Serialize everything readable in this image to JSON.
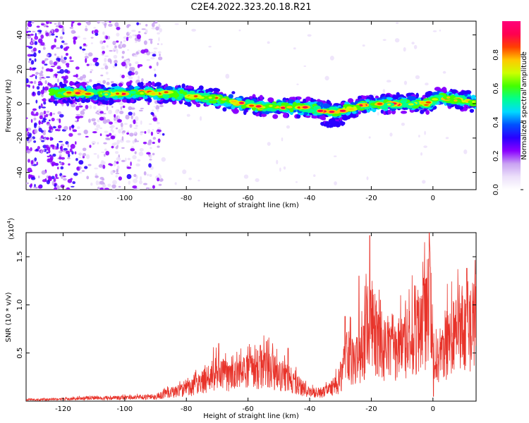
{
  "title": "C2E4.2022.323.20.18.R21",
  "chart_data": [
    {
      "type": "heatmap",
      "xlabel": "Height of straight line (km)",
      "ylabel": "Frequency (Hz)",
      "xlim": [
        -132,
        14
      ],
      "ylim": [
        -50,
        48
      ],
      "xticks": [
        -120,
        -100,
        -80,
        -60,
        -40,
        -20,
        0
      ],
      "yticks": [
        -40,
        -20,
        0,
        20,
        40
      ],
      "colorbar": {
        "label": "Normalized spectral amplitude",
        "range": [
          0,
          1
        ],
        "ticks": [
          "0.0",
          "0.2",
          "0.4",
          "0.6",
          "0.8"
        ],
        "tick_values": [
          0,
          0.2,
          0.4,
          0.6,
          0.8
        ],
        "colors": [
          "#ffffff",
          "#ece0fa",
          "#c9a2f2",
          "#8a00ff",
          "#2a00ff",
          "#0050ff",
          "#00d9ff",
          "#00ff90",
          "#44ff00",
          "#ccff00",
          "#ffc800",
          "#ff4000",
          "#ff0050",
          "#ff007a"
        ]
      },
      "ridge": {
        "x": [
          -124,
          -115,
          -105,
          -95,
          -85,
          -75,
          -65,
          -55,
          -45,
          -38,
          -32,
          -28,
          -22,
          -15,
          -8,
          -2,
          2,
          8,
          14
        ],
        "y": [
          6,
          6.5,
          6,
          6.5,
          6,
          4,
          1,
          -2,
          -2,
          -3,
          -5,
          -3,
          -1,
          0,
          0,
          0,
          4,
          2,
          1
        ]
      },
      "grid": false
    },
    {
      "type": "line",
      "xlabel": "Height of straight line (km)",
      "ylabel": "SNR (10 * v/v)",
      "multiplier": "(x10",
      "multiplier_exp": "4",
      "multiplier_close": ")",
      "xlim": [
        -132,
        14
      ],
      "ylim": [
        0,
        1.75
      ],
      "xticks": [
        -120,
        -100,
        -80,
        -60,
        -40,
        -20,
        0
      ],
      "yticks": [
        "0.5",
        "1.0",
        "1.5"
      ],
      "ytick_values": [
        0.5,
        1.0,
        1.5
      ],
      "color": "#e8332a",
      "envelope": {
        "x": [
          -132,
          -120,
          -110,
          -100,
          -90,
          -86,
          -80,
          -74,
          -70,
          -66,
          -60,
          -55,
          -50,
          -45,
          -40,
          -35,
          -30,
          -28,
          -24,
          -20,
          -17,
          -12,
          -8,
          -4,
          -1,
          0,
          0.5,
          3,
          6,
          10,
          14
        ],
        "y": [
          0.02,
          0.03,
          0.05,
          0.05,
          0.07,
          0.12,
          0.18,
          0.3,
          0.45,
          0.35,
          0.45,
          0.5,
          0.42,
          0.3,
          0.12,
          0.14,
          0.3,
          0.7,
          0.6,
          1.2,
          0.8,
          0.75,
          0.9,
          1.05,
          1.5,
          0.9,
          0.55,
          0.75,
          1.0,
          1.1,
          1.2
        ]
      },
      "spikes": [
        {
          "x": -69.5,
          "y": 0.6
        },
        {
          "x": -56,
          "y": 0.58
        },
        {
          "x": -54,
          "y": 0.62
        },
        {
          "x": -47,
          "y": 0.55
        },
        {
          "x": -28.5,
          "y": 0.88
        },
        {
          "x": -24,
          "y": 1.3
        },
        {
          "x": -20.5,
          "y": 1.72
        },
        {
          "x": -17,
          "y": 1.05
        },
        {
          "x": -6,
          "y": 1.2
        },
        {
          "x": -1.2,
          "y": 1.75
        },
        {
          "x": 0.2,
          "y": 0.05
        },
        {
          "x": 11,
          "y": 1.38
        }
      ]
    }
  ]
}
